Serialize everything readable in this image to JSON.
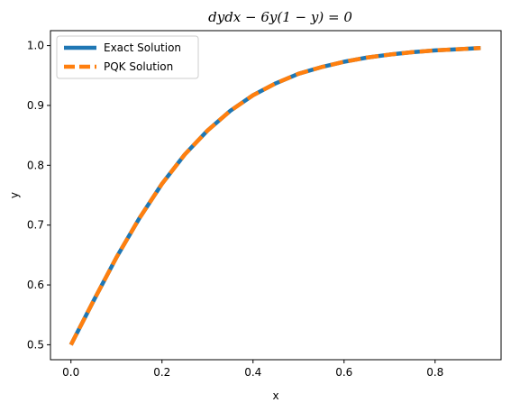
{
  "chart_data": {
    "type": "line",
    "title": "dydx − 6y(1 − y) = 0",
    "xlabel": "x",
    "ylabel": "y",
    "xlim": [
      -0.045,
      0.945
    ],
    "ylim": [
      0.475,
      1.025
    ],
    "xticks": [
      0.0,
      0.2,
      0.4,
      0.6,
      0.8
    ],
    "xtick_labels": [
      "0.0",
      "0.2",
      "0.4",
      "0.6",
      "0.8"
    ],
    "yticks": [
      0.5,
      0.6,
      0.7,
      0.8,
      0.9,
      1.0
    ],
    "ytick_labels": [
      "0.5",
      "0.6",
      "0.7",
      "0.8",
      "0.9",
      "1.0"
    ],
    "grid": false,
    "legend": "top-left",
    "series": [
      {
        "name": "Exact Solution",
        "color": "#1f77b4",
        "style": "solid",
        "x": [
          0.0,
          0.05,
          0.1,
          0.15,
          0.2,
          0.25,
          0.3,
          0.35,
          0.4,
          0.45,
          0.5,
          0.55,
          0.6,
          0.65,
          0.7,
          0.75,
          0.8,
          0.85,
          0.9
        ],
        "y": [
          0.5,
          0.574,
          0.646,
          0.711,
          0.769,
          0.818,
          0.858,
          0.891,
          0.917,
          0.937,
          0.953,
          0.964,
          0.973,
          0.98,
          0.985,
          0.989,
          0.992,
          0.994,
          0.996
        ]
      },
      {
        "name": "PQK Solution",
        "color": "#ff7f0e",
        "style": "dashed",
        "x": [
          0.0,
          0.05,
          0.1,
          0.15,
          0.2,
          0.25,
          0.3,
          0.35,
          0.4,
          0.45,
          0.5,
          0.55,
          0.6,
          0.65,
          0.7,
          0.75,
          0.8,
          0.85,
          0.9
        ],
        "y": [
          0.5,
          0.574,
          0.646,
          0.711,
          0.769,
          0.818,
          0.858,
          0.891,
          0.917,
          0.937,
          0.953,
          0.964,
          0.973,
          0.98,
          0.985,
          0.989,
          0.992,
          0.994,
          0.996
        ]
      }
    ]
  }
}
